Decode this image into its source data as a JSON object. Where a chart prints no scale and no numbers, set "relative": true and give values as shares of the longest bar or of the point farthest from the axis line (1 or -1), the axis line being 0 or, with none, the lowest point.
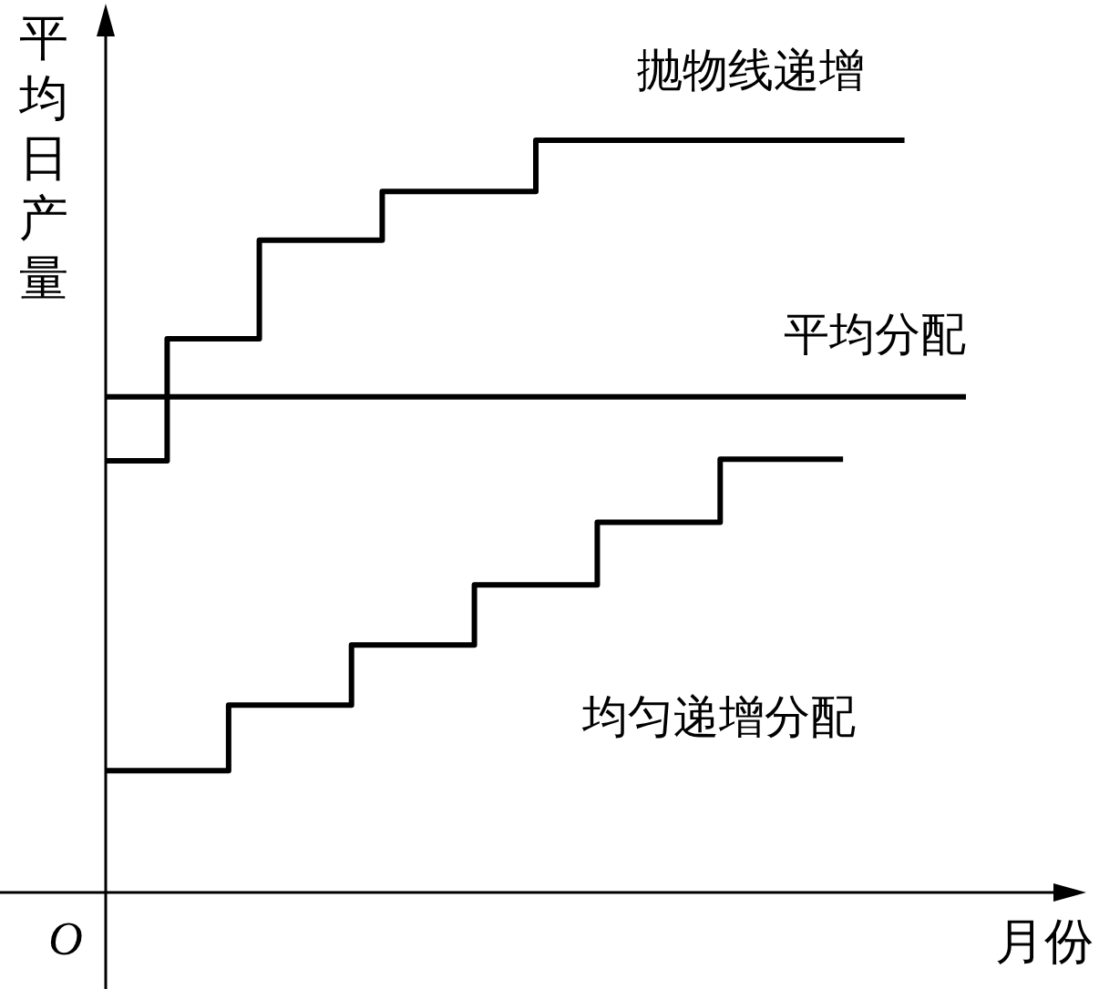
{
  "chart_data": {
    "type": "step",
    "relative": true,
    "ylabel": "平均日产量",
    "xlabel": "月份",
    "annotations": [
      "O"
    ],
    "categories": [
      null,
      null,
      null,
      null,
      null,
      null,
      null,
      null,
      null,
      null,
      null,
      null,
      null,
      null,
      null,
      null,
      null,
      null,
      null,
      null,
      null,
      null,
      null,
      null,
      null,
      null,
      null,
      null,
      null
    ],
    "series": [
      {
        "name": "抛物线递增",
        "color": "#000000",
        "values": [
          0.574,
          0.574,
          0.736,
          0.736,
          0.736,
          0.867,
          0.867,
          0.867,
          0.867,
          0.932,
          0.932,
          0.932,
          0.932,
          0.932,
          1,
          1,
          1,
          1,
          1,
          1,
          1,
          1,
          1,
          1,
          1,
          1,
          1,
          null,
          null
        ]
      },
      {
        "name": "平均分配",
        "color": "#000000",
        "values": [
          0.659,
          0.659,
          0.659,
          0.659,
          0.659,
          0.659,
          0.659,
          0.659,
          0.659,
          0.659,
          0.659,
          0.659,
          0.659,
          0.659,
          0.659,
          0.659,
          0.659,
          0.659,
          0.659,
          0.659,
          0.659,
          0.659,
          0.659,
          0.659,
          0.659,
          0.659,
          0.659,
          0.659,
          0.659
        ]
      },
      {
        "name": "均匀递增分配",
        "color": "#000000",
        "values": [
          0.162,
          0.162,
          0.162,
          0.162,
          0.249,
          0.249,
          0.249,
          0.249,
          0.329,
          0.329,
          0.329,
          0.329,
          0.409,
          0.409,
          0.409,
          0.409,
          0.492,
          0.492,
          0.492,
          0.492,
          0.576,
          0.576,
          0.576,
          0.576,
          0.576,
          null,
          null,
          null,
          null
        ]
      }
    ]
  }
}
